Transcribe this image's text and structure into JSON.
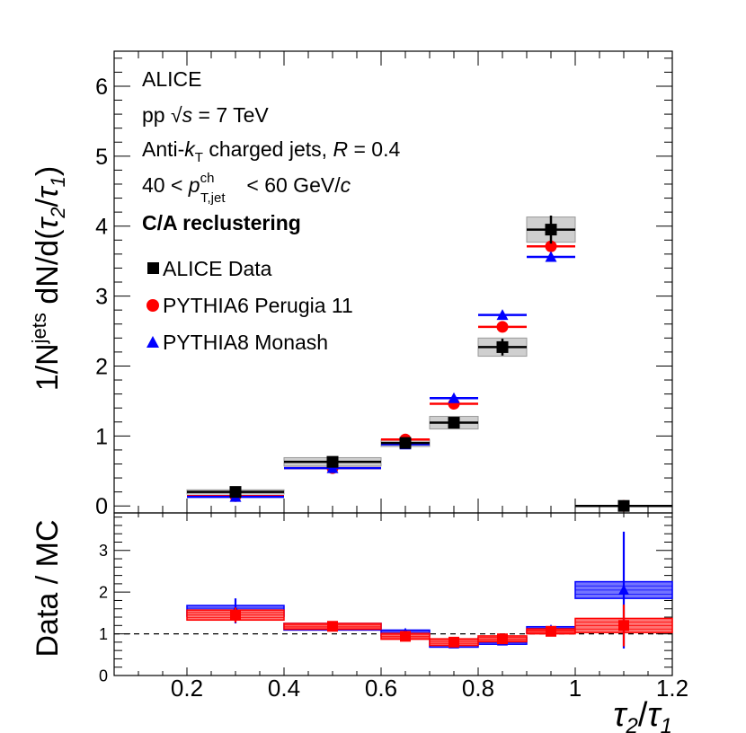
{
  "chart_data": [
    {
      "type": "scatter",
      "panel": "main",
      "ylabel_parts": {
        "pre": "1/N",
        "sup": "jets",
        "post": " dN/d(",
        "tau2": "τ",
        "sub2": "2",
        "slash": "/",
        "tau1": "τ",
        "sub1": "1",
        "close": ")"
      },
      "xlim": [
        0.05,
        1.2
      ],
      "ylim": [
        -0.1,
        6.5
      ],
      "yticks": [
        "0",
        "1",
        "2",
        "3",
        "4",
        "5",
        "6"
      ],
      "annotations": {
        "line1": "ALICE",
        "line2_pre": "pp  ",
        "line2_sqrt": "√",
        "line2_s": "s",
        "line2_post": " = 7 TeV",
        "line3_pre": "Anti-",
        "line3_k": "k",
        "line3_ksub": "T",
        "line3_mid": "  charged jets, ",
        "line3_R": "R",
        "line3_post": " = 0.4",
        "line4_pre": "40 < ",
        "line4_p": "p",
        "line4_sup": "ch",
        "line4_sub": "T,jet",
        "line4_post": " < 60 GeV/",
        "line4_c": "c",
        "line5": "C/A reclustering"
      },
      "series": [
        {
          "name": "ALICE Data",
          "color": "#000000",
          "marker": "square",
          "x": [
            0.3,
            0.5,
            0.65,
            0.75,
            0.85,
            0.95,
            1.1
          ],
          "xerr": [
            0.1,
            0.1,
            0.05,
            0.05,
            0.05,
            0.05,
            0.1
          ],
          "values": [
            0.2,
            0.63,
            0.9,
            1.19,
            2.27,
            3.95,
            0.0
          ],
          "stat": [
            0.03,
            0.05,
            0.04,
            0.07,
            0.12,
            0.2,
            0.0
          ],
          "syst": [
            0.03,
            0.06,
            0.05,
            0.09,
            0.13,
            0.18,
            0.0
          ]
        },
        {
          "name": "PYTHIA6 Perugia 11",
          "color": "#ff0000",
          "marker": "circle",
          "x": [
            0.3,
            0.5,
            0.65,
            0.75,
            0.85,
            0.95,
            1.1
          ],
          "xerr": [
            0.1,
            0.1,
            0.05,
            0.05,
            0.05,
            0.05,
            0.1
          ],
          "values": [
            0.14,
            0.54,
            0.95,
            1.46,
            2.56,
            3.71,
            0.0
          ]
        },
        {
          "name": "PYTHIA8 Monash",
          "color": "#0000ff",
          "marker": "triangle",
          "x": [
            0.3,
            0.5,
            0.65,
            0.75,
            0.85,
            0.95,
            1.1
          ],
          "xerr": [
            0.1,
            0.1,
            0.05,
            0.05,
            0.05,
            0.05,
            0.1
          ],
          "values": [
            0.13,
            0.54,
            0.88,
            1.54,
            2.73,
            3.56,
            0.0
          ]
        }
      ]
    },
    {
      "type": "scatter",
      "panel": "ratio",
      "ylabel": "Data / MC",
      "xlabel_parts": {
        "tau2": "τ",
        "sub2": "2",
        "slash": "/",
        "tau1": "τ",
        "sub1": "1"
      },
      "xlim": [
        0.05,
        1.2
      ],
      "ylim": [
        0,
        3.9
      ],
      "yticks": [
        "0",
        "1",
        "2",
        "3"
      ],
      "xticks": [
        "0.2",
        "0.4",
        "0.6",
        "0.8",
        "1",
        "1.2"
      ],
      "reference_line": 1,
      "series": [
        {
          "name": "Data / PYTHIA6 Perugia 11",
          "color": "#ff0000",
          "marker": "square",
          "x": [
            0.3,
            0.5,
            0.65,
            0.75,
            0.85,
            0.95,
            1.1
          ],
          "xerr": [
            0.1,
            0.1,
            0.05,
            0.05,
            0.05,
            0.05,
            0.1
          ],
          "values": [
            1.45,
            1.18,
            0.94,
            0.8,
            0.88,
            1.06,
            1.2
          ],
          "stat": [
            0.18,
            0.05,
            0.04,
            0.05,
            0.05,
            0.05,
            0.5
          ],
          "syst": [
            0.12,
            0.07,
            0.07,
            0.08,
            0.07,
            0.06,
            0.17
          ]
        },
        {
          "name": "Data / PYTHIA8 Monash",
          "color": "#0000ff",
          "marker": "triangle",
          "x": [
            0.3,
            0.5,
            0.65,
            0.75,
            0.85,
            0.95,
            1.1
          ],
          "xerr": [
            0.1,
            0.1,
            0.05,
            0.05,
            0.05,
            0.05,
            0.1
          ],
          "values": [
            1.55,
            1.17,
            1.02,
            0.76,
            0.83,
            1.1,
            2.05
          ],
          "stat": [
            0.3,
            0.05,
            0.05,
            0.05,
            0.05,
            0.05,
            1.4
          ],
          "syst": [
            0.13,
            0.08,
            0.07,
            0.08,
            0.08,
            0.07,
            0.2
          ]
        }
      ]
    }
  ]
}
